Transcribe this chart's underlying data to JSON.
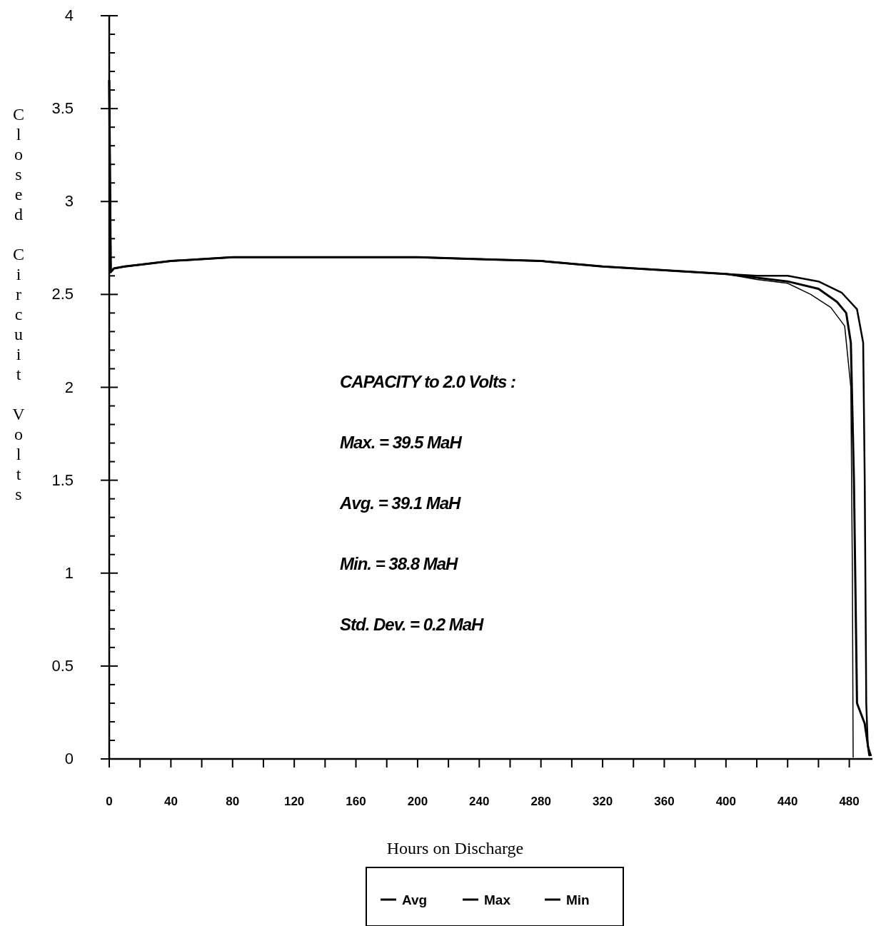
{
  "chart_data": {
    "type": "line",
    "xlabel": "Hours on Discharge",
    "ylabel": "Closed Circuit Volts",
    "xlim": [
      0,
      495
    ],
    "ylim": [
      0,
      4
    ],
    "xticks": [
      0,
      {
        "value": 20,
        "label": null
      },
      40,
      {
        "value": 60,
        "label": null
      },
      80,
      {
        "value": 100,
        "label": null
      },
      120,
      {
        "value": 140,
        "label": null
      },
      160,
      {
        "value": 180,
        "label": null
      },
      200,
      {
        "value": 220,
        "label": null
      },
      240,
      {
        "value": 260,
        "label": null
      },
      280,
      {
        "value": 300,
        "label": null
      },
      320,
      {
        "value": 340,
        "label": null
      },
      360,
      {
        "value": 380,
        "label": null
      },
      400,
      {
        "value": 420,
        "label": null
      },
      440,
      {
        "value": 460,
        "label": null
      },
      480
    ],
    "yticks": [
      0,
      {
        "value": 0.1,
        "label": null
      },
      {
        "value": 0.2,
        "label": null
      },
      {
        "value": 0.3,
        "label": null
      },
      {
        "value": 0.4,
        "label": null
      },
      0.5,
      {
        "value": 0.6,
        "label": null
      },
      {
        "value": 0.7,
        "label": null
      },
      {
        "value": 0.8,
        "label": null
      },
      {
        "value": 0.9,
        "label": null
      },
      1,
      {
        "value": 1.1,
        "label": null
      },
      {
        "value": 1.2,
        "label": null
      },
      {
        "value": 1.3,
        "label": null
      },
      {
        "value": 1.4,
        "label": null
      },
      1.5,
      {
        "value": 1.6,
        "label": null
      },
      {
        "value": 1.7,
        "label": null
      },
      {
        "value": 1.8,
        "label": null
      },
      {
        "value": 1.9,
        "label": null
      },
      2,
      {
        "value": 2.1,
        "label": null
      },
      {
        "value": 2.2,
        "label": null
      },
      {
        "value": 2.3,
        "label": null
      },
      {
        "value": 2.4,
        "label": null
      },
      2.5,
      {
        "value": 2.6,
        "label": null
      },
      {
        "value": 2.7,
        "label": null
      },
      {
        "value": 2.8,
        "label": null
      },
      {
        "value": 2.9,
        "label": null
      },
      3,
      {
        "value": 3.1,
        "label": null
      },
      {
        "value": 3.2,
        "label": null
      },
      {
        "value": 3.3,
        "label": null
      },
      {
        "value": 3.4,
        "label": null
      },
      3.5,
      {
        "value": 3.6,
        "label": null
      },
      {
        "value": 3.7,
        "label": null
      },
      {
        "value": 3.8,
        "label": null
      },
      {
        "value": 3.9,
        "label": null
      },
      4
    ],
    "grid": false,
    "legend": "bottom",
    "marker": "none",
    "line_style": "solid",
    "annotations": [
      "CAPACITY to 2.0 Volts :",
      "Max. = 39.5 MaH",
      "Avg. = 39.1 MaH",
      "Min. = 38.8 MaH",
      "Std. Dev. = 0.2 MaH"
    ],
    "series": [
      {
        "name": "Avg",
        "color": "#000000",
        "x": [
          0,
          1,
          3,
          10,
          20,
          40,
          80,
          120,
          160,
          200,
          240,
          280,
          320,
          360,
          400,
          420,
          440,
          460,
          472,
          478,
          481,
          483,
          485,
          490,
          493
        ],
        "values": [
          3.65,
          2.62,
          2.64,
          2.65,
          2.66,
          2.68,
          2.7,
          2.7,
          2.7,
          2.7,
          2.69,
          2.68,
          2.65,
          2.63,
          2.61,
          2.59,
          2.57,
          2.53,
          2.46,
          2.4,
          2.24,
          1.5,
          0.3,
          0.19,
          0.02
        ]
      },
      {
        "name": "Max",
        "color": "#000000",
        "x": [
          0,
          1,
          3,
          10,
          20,
          40,
          80,
          120,
          160,
          200,
          240,
          280,
          320,
          360,
          400,
          420,
          440,
          460,
          475,
          485,
          489,
          490,
          491,
          492,
          494
        ],
        "values": [
          3.65,
          2.62,
          2.64,
          2.65,
          2.66,
          2.68,
          2.7,
          2.7,
          2.7,
          2.7,
          2.69,
          2.68,
          2.65,
          2.63,
          2.61,
          2.6,
          2.6,
          2.57,
          2.51,
          2.42,
          2.24,
          1.5,
          0.3,
          0.07,
          0.02
        ]
      },
      {
        "name": "Min",
        "color": "#000000",
        "x": [
          0,
          1,
          3,
          10,
          20,
          40,
          80,
          120,
          160,
          200,
          240,
          280,
          320,
          360,
          400,
          420,
          440,
          455,
          468,
          477,
          481,
          482,
          482.5
        ],
        "values": [
          3.65,
          2.62,
          2.64,
          2.65,
          2.66,
          2.68,
          2.7,
          2.7,
          2.7,
          2.7,
          2.69,
          2.68,
          2.65,
          2.63,
          2.61,
          2.58,
          2.56,
          2.5,
          2.43,
          2.33,
          2.0,
          1.0,
          0.01
        ]
      }
    ]
  }
}
